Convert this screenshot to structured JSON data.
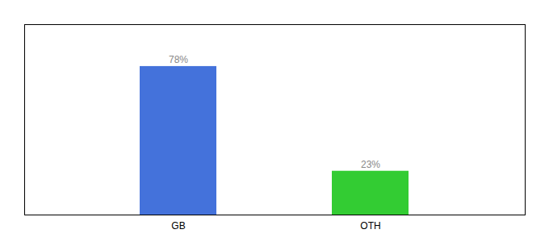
{
  "chart_data": {
    "type": "bar",
    "categories": [
      "GB",
      "OTH"
    ],
    "values": [
      78,
      23
    ],
    "value_labels": [
      "78%",
      "23%"
    ],
    "colors": [
      "#4472db",
      "#33cc33"
    ],
    "data_labels": true,
    "ylim": [
      0,
      100
    ],
    "yticks": [],
    "tick_labels": "x",
    "grid": false
  }
}
